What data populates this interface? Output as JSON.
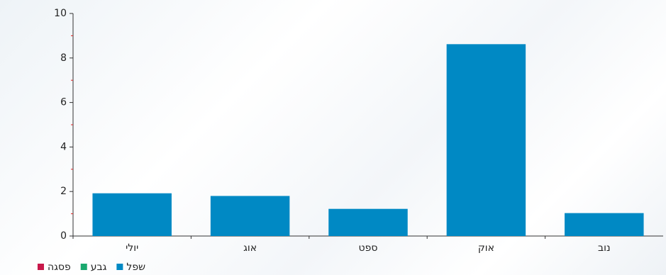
{
  "chart_data": {
    "type": "bar",
    "categories": [
      "יולי",
      "אוג",
      "ספט",
      "אוק",
      "נוב"
    ],
    "series": [
      {
        "name": "שפל",
        "color": "#0089c4",
        "values": [
          1.92,
          1.8,
          1.22,
          8.62,
          1.03
        ]
      },
      {
        "name": "גבע",
        "color": "#1aa86e",
        "values": [
          null,
          null,
          null,
          null,
          null
        ]
      },
      {
        "name": "פסגה",
        "color": "#c8184a",
        "values": [
          null,
          null,
          null,
          null,
          null
        ]
      }
    ],
    "ylim": [
      0,
      10
    ],
    "yticks": [
      0,
      2,
      4,
      6,
      8,
      10
    ],
    "minor_yticks": [
      1,
      3,
      5,
      7,
      9
    ],
    "minor_tick_color": "#d22",
    "grid": false,
    "legend": "bottom-left"
  }
}
